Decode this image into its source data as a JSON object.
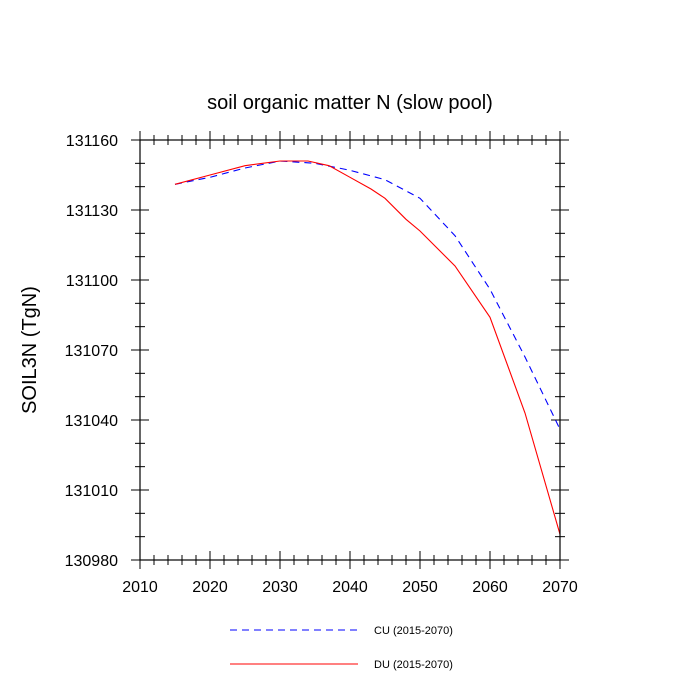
{
  "chart_data": {
    "type": "line",
    "title": "soil organic matter N (slow pool)",
    "xlabel": "",
    "ylabel": "SOIL3N  (TgN)",
    "xlim": [
      2010,
      2070
    ],
    "ylim": [
      130980,
      131160
    ],
    "x_ticks": [
      2010,
      2020,
      2030,
      2040,
      2050,
      2060,
      2070
    ],
    "y_ticks": [
      130980,
      131010,
      131040,
      131070,
      131100,
      131130,
      131160
    ],
    "series": [
      {
        "name": "CU (2015-2070)",
        "color": "#0000ff",
        "style": "dashed",
        "x": [
          2015,
          2020,
          2025,
          2030,
          2035,
          2040,
          2045,
          2050,
          2055,
          2060,
          2065,
          2070
        ],
        "y": [
          131141,
          131144,
          131148,
          131151,
          131150,
          131147,
          131143,
          131135,
          131119,
          131096,
          131067,
          131036
        ]
      },
      {
        "name": "DU (2015-2070)",
        "color": "#ff0000",
        "style": "solid",
        "x": [
          2015,
          2020,
          2025,
          2030,
          2034,
          2037,
          2040,
          2043,
          2045,
          2048,
          2050,
          2055,
          2060,
          2065,
          2070
        ],
        "y": [
          131141,
          131145,
          131149,
          131151,
          131151,
          131149,
          131144,
          131139,
          131135,
          131126,
          131121,
          131106,
          131084,
          131043,
          130991
        ]
      }
    ]
  }
}
